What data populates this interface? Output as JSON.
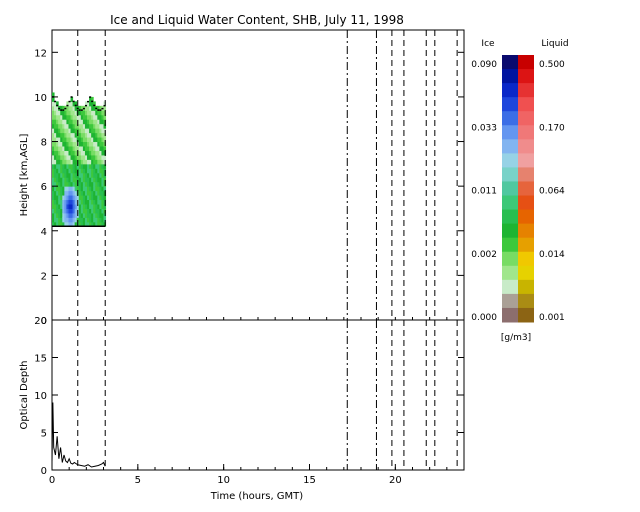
{
  "chart_data": [
    {
      "type": "heatmap",
      "title": "Ice and Liquid Water Content, SHB, July 11, 1998",
      "xlabel": "",
      "ylabel": "Height [km,AGL]",
      "xlim": [
        0,
        24
      ],
      "ylim": [
        0,
        13
      ],
      "yticks": [
        "0",
        "2",
        "4",
        "6",
        "8",
        "10",
        "12"
      ],
      "cloud_periods": [
        {
          "start": 0.0,
          "end": 3.1,
          "base_km": 4.2,
          "top_km": 10.0,
          "liquid_layer_km": [
            4.2,
            7.0
          ],
          "ice_max_near": {
            "time": 1.0,
            "height_km": 5.0
          }
        }
      ],
      "vertical_markers": {
        "dashed": [
          1.5,
          3.1,
          19.8,
          20.5,
          21.8,
          22.3,
          23.6
        ],
        "dash_dot": [
          17.2,
          18.9
        ]
      }
    },
    {
      "type": "line",
      "xlabel": "Time (hours, GMT)",
      "ylabel": "Optical Depth",
      "xlim": [
        0,
        24
      ],
      "ylim": [
        0,
        20
      ],
      "xticks": [
        "0",
        "5",
        "10",
        "15",
        "20"
      ],
      "yticks": [
        "0",
        "5",
        "10",
        "15",
        "20"
      ],
      "series": [
        {
          "x": [
            0.0,
            0.05,
            0.1,
            0.2,
            0.3,
            0.4,
            0.5,
            0.6,
            0.7,
            0.8,
            0.9,
            1.0,
            1.1,
            1.2,
            1.3,
            1.5,
            1.7,
            1.9,
            2.1,
            2.3,
            2.5,
            2.7,
            2.9,
            3.0,
            3.1
          ],
          "y": [
            1.0,
            9.0,
            3.0,
            2.0,
            4.5,
            1.5,
            3.0,
            1.0,
            2.0,
            1.2,
            1.0,
            1.5,
            0.9,
            0.8,
            1.0,
            0.7,
            0.6,
            0.5,
            0.7,
            0.4,
            0.5,
            0.6,
            0.8,
            1.0,
            0.5
          ]
        }
      ]
    }
  ],
  "colorbar": {
    "ice_label": "Ice",
    "liquid_label": "Liquid",
    "units": "[g/m3]",
    "ice_ticks": [
      "0.090",
      "0.033",
      "0.011",
      "0.002",
      "0.000"
    ],
    "liquid_ticks": [
      "0.500",
      "0.170",
      "0.064",
      "0.014",
      "0.001"
    ],
    "ice_colors": [
      "#0a0a6e",
      "#0014a0",
      "#0a28c8",
      "#1e46dc",
      "#3c6ee6",
      "#6496f0",
      "#82b4f0",
      "#96d2e6",
      "#78d2c8",
      "#50c8a0",
      "#3cc878",
      "#28be50",
      "#1eb432",
      "#3cc83c",
      "#78dc64",
      "#a0e68c",
      "#c8ebc8",
      "#aaa096",
      "#8c6e6e"
    ],
    "liquid_colors": [
      "#c80000",
      "#dc1414",
      "#e63232",
      "#f05050",
      "#f06464",
      "#f07878",
      "#f08c8c",
      "#f0a0a0",
      "#e6826e",
      "#e6643c",
      "#e65014",
      "#e66400",
      "#e68200",
      "#e6a000",
      "#f0c800",
      "#e6d200",
      "#c8b400",
      "#aa8c14",
      "#8c6414"
    ]
  }
}
